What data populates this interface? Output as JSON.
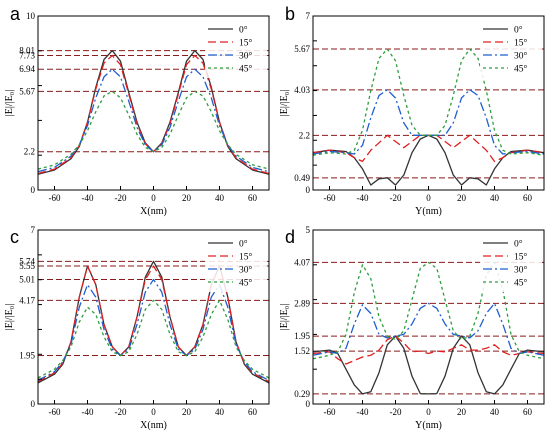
{
  "chart_data": [
    {
      "type": "line",
      "panel_label": "a",
      "xlabel": "X(nm)",
      "ylabel": "|E|/|E₀|",
      "xlim": [
        -70,
        70
      ],
      "ylim": [
        0,
        10
      ],
      "xticks": [
        -60,
        -40,
        -20,
        0,
        20,
        40,
        60
      ],
      "yticks": [
        0,
        2,
        4,
        6,
        8,
        10
      ],
      "ref_lines": [
        8.01,
        7.73,
        6.94,
        5.67,
        2.2
      ],
      "ref_labels": [
        "8.01",
        "7.73",
        "6.94",
        "5.67",
        "2.2"
      ],
      "legend": "top-right",
      "series": [
        {
          "name": "0°",
          "color": "#333333",
          "dash": "solid",
          "x": [
            -70,
            -60,
            -50,
            -45,
            -40,
            -35,
            -30,
            -25,
            -20,
            -15,
            -10,
            -5,
            0,
            5,
            10,
            15,
            20,
            25,
            30,
            35,
            40,
            45,
            50,
            60,
            70
          ],
          "y": [
            0.9,
            1.15,
            1.8,
            2.5,
            3.9,
            5.9,
            7.5,
            8.01,
            7.4,
            5.6,
            3.9,
            2.7,
            2.2,
            2.7,
            3.9,
            5.6,
            7.4,
            8.01,
            7.5,
            5.9,
            3.9,
            2.5,
            1.8,
            1.15,
            0.9
          ]
        },
        {
          "name": "15°",
          "color": "#e02020",
          "dash": "8,4",
          "x": [
            -70,
            -60,
            -50,
            -45,
            -40,
            -35,
            -30,
            -25,
            -20,
            -15,
            -10,
            -5,
            0,
            5,
            10,
            15,
            20,
            25,
            30,
            35,
            40,
            45,
            50,
            60,
            70
          ],
          "y": [
            0.95,
            1.2,
            1.85,
            2.55,
            3.9,
            5.8,
            7.3,
            7.73,
            7.2,
            5.5,
            3.8,
            2.65,
            2.2,
            2.65,
            3.8,
            5.5,
            7.2,
            7.73,
            7.3,
            5.8,
            3.9,
            2.55,
            1.85,
            1.2,
            0.95
          ]
        },
        {
          "name": "30°",
          "color": "#1f5fd0",
          "dash": "9,3,2,3",
          "x": [
            -70,
            -60,
            -50,
            -45,
            -40,
            -35,
            -30,
            -25,
            -20,
            -15,
            -10,
            -5,
            0,
            5,
            10,
            15,
            20,
            25,
            30,
            35,
            40,
            45,
            50,
            60,
            70
          ],
          "y": [
            1.05,
            1.3,
            1.95,
            2.6,
            3.7,
            5.3,
            6.5,
            6.94,
            6.5,
            5.1,
            3.6,
            2.6,
            2.2,
            2.6,
            3.6,
            5.1,
            6.5,
            6.94,
            6.5,
            5.3,
            3.7,
            2.6,
            1.95,
            1.3,
            1.05
          ]
        },
        {
          "name": "45°",
          "color": "#2e9e3e",
          "dash": "3,3",
          "x": [
            -70,
            -60,
            -50,
            -45,
            -40,
            -35,
            -30,
            -25,
            -20,
            -15,
            -10,
            -5,
            0,
            5,
            10,
            15,
            20,
            25,
            30,
            35,
            40,
            45,
            50,
            60,
            70
          ],
          "y": [
            1.2,
            1.45,
            2.05,
            2.6,
            3.4,
            4.5,
            5.4,
            5.67,
            5.3,
            4.3,
            3.2,
            2.45,
            2.2,
            2.45,
            3.2,
            4.3,
            5.3,
            5.67,
            5.4,
            4.5,
            3.4,
            2.6,
            2.05,
            1.45,
            1.2
          ]
        }
      ]
    },
    {
      "type": "line",
      "panel_label": "b",
      "xlabel": "Y(nm)",
      "ylabel": "|E|/|E₀|",
      "xlim": [
        -70,
        70
      ],
      "ylim": [
        0,
        7
      ],
      "xticks": [
        -60,
        -40,
        -20,
        0,
        20,
        40,
        60
      ],
      "yticks": [
        0,
        1,
        2,
        3,
        4,
        5,
        6,
        7
      ],
      "ref_lines": [
        5.67,
        4.03,
        2.2,
        0.49
      ],
      "ref_labels": [
        "5.67",
        "4.03",
        "2.2",
        "0.49"
      ],
      "legend": "top-right",
      "series": [
        {
          "name": "0°",
          "color": "#333333",
          "dash": "solid",
          "x": [
            -70,
            -60,
            -50,
            -45,
            -40,
            -35,
            -30,
            -25,
            -20,
            -15,
            -10,
            -5,
            0,
            5,
            10,
            15,
            20,
            25,
            30,
            35,
            40,
            45,
            50,
            60,
            70
          ],
          "y": [
            1.5,
            1.6,
            1.55,
            1.3,
            0.85,
            0.2,
            0.45,
            0.49,
            0.2,
            0.6,
            1.5,
            2.05,
            2.2,
            2.05,
            1.5,
            0.6,
            0.2,
            0.49,
            0.45,
            0.2,
            0.85,
            1.3,
            1.55,
            1.6,
            1.5
          ]
        },
        {
          "name": "15°",
          "color": "#e02020",
          "dash": "8,4",
          "x": [
            -70,
            -60,
            -50,
            -45,
            -40,
            -35,
            -30,
            -25,
            -20,
            -15,
            -10,
            -5,
            0,
            5,
            10,
            15,
            20,
            25,
            30,
            35,
            40,
            45,
            50,
            60,
            70
          ],
          "y": [
            1.5,
            1.6,
            1.5,
            1.3,
            1.15,
            1.6,
            1.9,
            2.2,
            1.95,
            1.7,
            1.95,
            2.2,
            2.2,
            2.2,
            1.95,
            1.7,
            1.95,
            2.2,
            1.9,
            1.6,
            1.15,
            1.3,
            1.5,
            1.6,
            1.5
          ]
        },
        {
          "name": "30°",
          "color": "#1f5fd0",
          "dash": "9,3,2,3",
          "x": [
            -70,
            -60,
            -50,
            -45,
            -40,
            -35,
            -30,
            -25,
            -20,
            -15,
            -10,
            -5,
            0,
            5,
            10,
            15,
            20,
            25,
            30,
            35,
            40,
            45,
            50,
            60,
            70
          ],
          "y": [
            1.45,
            1.55,
            1.5,
            1.45,
            1.8,
            2.9,
            3.8,
            4.03,
            3.7,
            2.7,
            2.2,
            2.2,
            2.2,
            2.2,
            2.2,
            2.7,
            3.7,
            4.03,
            3.8,
            2.9,
            1.8,
            1.45,
            1.5,
            1.55,
            1.45
          ]
        },
        {
          "name": "45°",
          "color": "#2e9e3e",
          "dash": "3,3",
          "x": [
            -70,
            -60,
            -50,
            -45,
            -40,
            -35,
            -30,
            -25,
            -20,
            -15,
            -10,
            -5,
            0,
            5,
            10,
            15,
            20,
            25,
            30,
            35,
            40,
            45,
            50,
            60,
            70
          ],
          "y": [
            1.4,
            1.5,
            1.45,
            1.6,
            2.4,
            4.0,
            5.3,
            5.67,
            5.2,
            3.8,
            2.6,
            2.2,
            2.2,
            2.2,
            2.6,
            3.8,
            5.2,
            5.67,
            5.3,
            4.0,
            2.4,
            1.6,
            1.45,
            1.5,
            1.4
          ]
        }
      ]
    },
    {
      "type": "line",
      "panel_label": "c",
      "xlabel": "X(nm)",
      "ylabel": "|E|/|E₀|",
      "xlim": [
        -70,
        70
      ],
      "ylim": [
        0,
        7
      ],
      "xticks": [
        -60,
        -40,
        -20,
        0,
        20,
        40,
        60
      ],
      "yticks": [
        0,
        1,
        2,
        3,
        4,
        5,
        6,
        7
      ],
      "ref_lines": [
        5.74,
        5.55,
        5.01,
        4.17,
        1.95
      ],
      "ref_labels": [
        "5.74",
        "5.55",
        "5.01",
        "4.17",
        "1.95"
      ],
      "legend": "top-right",
      "series": [
        {
          "name": "0°",
          "color": "#333333",
          "dash": "solid",
          "x": [
            -70,
            -60,
            -55,
            -50,
            -45,
            -40,
            -35,
            -30,
            -25,
            -20,
            -15,
            -10,
            -5,
            0,
            5,
            10,
            15,
            20,
            25,
            30,
            35,
            40,
            45,
            50,
            55,
            60,
            70
          ],
          "y": [
            0.85,
            1.2,
            1.6,
            2.5,
            4.3,
            5.55,
            4.8,
            3.2,
            2.3,
            1.95,
            2.3,
            3.5,
            5.1,
            5.74,
            5.1,
            3.5,
            2.3,
            1.95,
            2.3,
            3.2,
            4.8,
            5.55,
            4.3,
            2.5,
            1.6,
            1.2,
            0.85
          ]
        },
        {
          "name": "15°",
          "color": "#e02020",
          "dash": "8,4",
          "x": [
            -70,
            -60,
            -55,
            -50,
            -45,
            -40,
            -35,
            -30,
            -25,
            -20,
            -15,
            -10,
            -5,
            0,
            5,
            10,
            15,
            20,
            25,
            30,
            35,
            40,
            45,
            50,
            55,
            60,
            70
          ],
          "y": [
            0.9,
            1.25,
            1.65,
            2.5,
            4.3,
            5.55,
            4.8,
            3.2,
            2.3,
            1.95,
            2.3,
            3.5,
            5.0,
            5.55,
            5.0,
            3.5,
            2.3,
            1.95,
            2.3,
            3.2,
            4.8,
            5.55,
            4.3,
            2.5,
            1.65,
            1.25,
            0.9
          ]
        },
        {
          "name": "30°",
          "color": "#1f5fd0",
          "dash": "9,3,2,3",
          "x": [
            -70,
            -60,
            -55,
            -50,
            -45,
            -40,
            -35,
            -30,
            -25,
            -20,
            -15,
            -10,
            -5,
            0,
            5,
            10,
            15,
            20,
            25,
            30,
            35,
            40,
            45,
            50,
            55,
            60,
            70
          ],
          "y": [
            0.95,
            1.3,
            1.7,
            2.4,
            3.9,
            4.8,
            4.3,
            3.0,
            2.2,
            1.95,
            2.2,
            3.2,
            4.5,
            5.01,
            4.5,
            3.2,
            2.2,
            1.95,
            2.2,
            3.0,
            4.3,
            4.8,
            3.9,
            2.4,
            1.7,
            1.3,
            0.95
          ]
        },
        {
          "name": "45°",
          "color": "#2e9e3e",
          "dash": "3,3",
          "x": [
            -70,
            -60,
            -55,
            -50,
            -45,
            -40,
            -35,
            -30,
            -25,
            -20,
            -15,
            -10,
            -5,
            0,
            5,
            10,
            15,
            20,
            25,
            30,
            35,
            40,
            45,
            50,
            55,
            60,
            70
          ],
          "y": [
            1.05,
            1.4,
            1.75,
            2.3,
            3.3,
            3.9,
            3.6,
            2.7,
            2.1,
            1.95,
            2.1,
            2.8,
            3.8,
            4.17,
            3.8,
            2.8,
            2.1,
            1.95,
            2.1,
            2.7,
            3.6,
            4.17,
            3.4,
            2.3,
            1.75,
            1.4,
            1.05
          ]
        }
      ]
    },
    {
      "type": "line",
      "panel_label": "d",
      "xlabel": "Y(nm)",
      "ylabel": "|E|/|E₀|",
      "xlim": [
        -70,
        70
      ],
      "ylim": [
        0,
        5
      ],
      "xticks": [
        -60,
        -40,
        -20,
        0,
        20,
        40,
        60
      ],
      "yticks": [
        0,
        1,
        2,
        3,
        4,
        5
      ],
      "ref_lines": [
        4.07,
        2.89,
        1.95,
        1.52,
        0.29
      ],
      "ref_labels": [
        "4.07",
        "2.89",
        "1.95",
        "1.52",
        "0.29"
      ],
      "legend": "top-right",
      "series": [
        {
          "name": "0°",
          "color": "#333333",
          "dash": "solid",
          "x": [
            -70,
            -60,
            -55,
            -50,
            -45,
            -40,
            -35,
            -30,
            -25,
            -20,
            -15,
            -10,
            -5,
            0,
            5,
            10,
            15,
            20,
            25,
            30,
            35,
            40,
            45,
            50,
            55,
            60,
            70
          ],
          "y": [
            1.5,
            1.55,
            1.45,
            1.0,
            0.55,
            0.29,
            0.35,
            0.9,
            1.7,
            1.95,
            1.6,
            0.8,
            0.3,
            0.29,
            0.3,
            0.8,
            1.6,
            1.95,
            1.7,
            0.9,
            0.35,
            0.29,
            0.55,
            1.0,
            1.45,
            1.55,
            1.5
          ]
        },
        {
          "name": "15°",
          "color": "#e02020",
          "dash": "8,4",
          "x": [
            -70,
            -60,
            -55,
            -50,
            -45,
            -40,
            -35,
            -30,
            -25,
            -20,
            -15,
            -10,
            -5,
            0,
            5,
            10,
            15,
            20,
            25,
            30,
            35,
            40,
            45,
            50,
            55,
            60,
            70
          ],
          "y": [
            1.45,
            1.5,
            1.3,
            1.15,
            1.25,
            1.35,
            1.4,
            1.55,
            1.85,
            1.95,
            1.75,
            1.5,
            1.52,
            1.45,
            1.52,
            1.5,
            1.6,
            1.7,
            1.55,
            1.55,
            1.6,
            1.7,
            1.5,
            1.4,
            1.45,
            1.5,
            1.45
          ]
        },
        {
          "name": "30°",
          "color": "#1f5fd0",
          "dash": "9,3,2,3",
          "x": [
            -70,
            -60,
            -55,
            -50,
            -45,
            -40,
            -35,
            -30,
            -25,
            -20,
            -15,
            -10,
            -5,
            0,
            5,
            10,
            15,
            20,
            25,
            30,
            35,
            40,
            45,
            50,
            55,
            60,
            70
          ],
          "y": [
            1.4,
            1.5,
            1.45,
            1.6,
            2.3,
            2.85,
            2.6,
            2.0,
            1.9,
            1.95,
            2.0,
            2.3,
            2.75,
            2.89,
            2.75,
            2.3,
            2.0,
            1.95,
            1.9,
            2.1,
            2.6,
            2.89,
            2.3,
            1.6,
            1.45,
            1.5,
            1.4
          ]
        },
        {
          "name": "45°",
          "color": "#2e9e3e",
          "dash": "3,3",
          "x": [
            -70,
            -60,
            -55,
            -50,
            -45,
            -40,
            -35,
            -30,
            -25,
            -20,
            -15,
            -10,
            -5,
            0,
            5,
            10,
            15,
            20,
            25,
            30,
            35,
            40,
            45,
            50,
            55,
            60,
            70
          ],
          "y": [
            1.3,
            1.4,
            1.5,
            2.0,
            3.2,
            4.0,
            3.6,
            2.5,
            1.95,
            1.85,
            2.1,
            3.0,
            3.9,
            4.07,
            3.9,
            3.0,
            2.1,
            1.85,
            1.95,
            2.6,
            3.7,
            4.07,
            3.3,
            2.0,
            1.5,
            1.4,
            1.3
          ]
        }
      ]
    }
  ]
}
